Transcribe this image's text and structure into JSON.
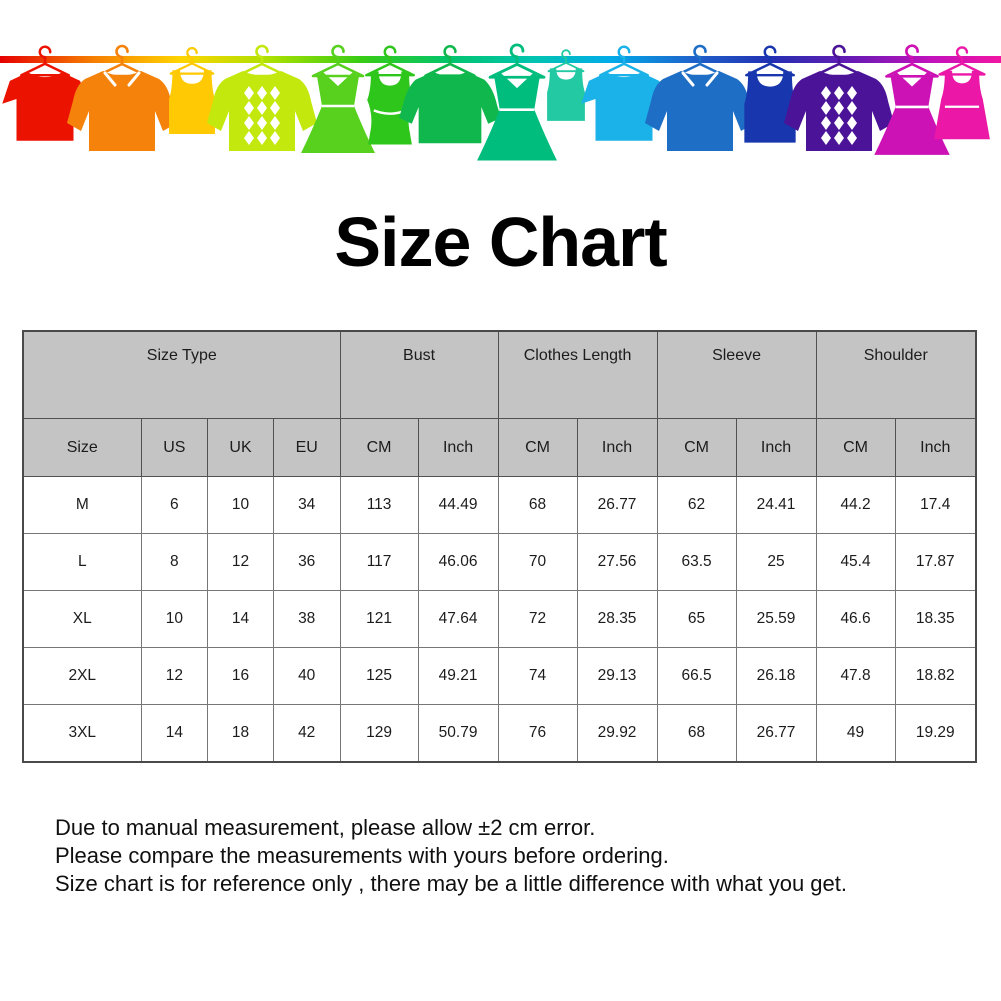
{
  "title": "Size Chart",
  "banner": {
    "rope_gradient": [
      [
        "0",
        "#e60000"
      ],
      [
        "0.09",
        "#f57a00"
      ],
      [
        "0.18",
        "#ffd400"
      ],
      [
        "0.27",
        "#abe000"
      ],
      [
        "0.36",
        "#38cc14"
      ],
      [
        "0.45",
        "#00c46e"
      ],
      [
        "0.53",
        "#00c4ae"
      ],
      [
        "0.61",
        "#00abe8"
      ],
      [
        "0.69",
        "#1e64cc"
      ],
      [
        "0.77",
        "#2330b2"
      ],
      [
        "0.85",
        "#661ab4"
      ],
      [
        "0.93",
        "#c212bc"
      ],
      [
        "1",
        "#f214a2"
      ]
    ],
    "items": [
      {
        "name": "red-tshirt",
        "shape": "tshirt",
        "color": "#ec1200"
      },
      {
        "name": "orange-shirt",
        "shape": "shirt",
        "color": "#f5820a"
      },
      {
        "name": "yellow-tank-top",
        "shape": "tank",
        "color": "#ffc903"
      },
      {
        "name": "lime-argyle-sweater",
        "shape": "sweater",
        "color": "#c3e80e"
      },
      {
        "name": "green-dress",
        "shape": "dress",
        "color": "#57d11d"
      },
      {
        "name": "green-camisole",
        "shape": "camisole",
        "color": "#2fc61b"
      },
      {
        "name": "green-sweatshirt",
        "shape": "longsleeve",
        "color": "#0fb74d"
      },
      {
        "name": "teal-dress",
        "shape": "dress",
        "color": "#00bd7e"
      },
      {
        "name": "teal-tank-top",
        "shape": "tank",
        "color": "#22c9a2"
      },
      {
        "name": "cyan-tshirt",
        "shape": "tshirt",
        "color": "#1ab2e8"
      },
      {
        "name": "blue-shirt",
        "shape": "shirt",
        "color": "#1f6ec6"
      },
      {
        "name": "navy-tank-top",
        "shape": "tank",
        "color": "#1836ad"
      },
      {
        "name": "purple-argyle-sweater",
        "shape": "sweater",
        "color": "#4b1397"
      },
      {
        "name": "magenta-dress",
        "shape": "dress",
        "color": "#cd12b5"
      },
      {
        "name": "pink-tank-dress",
        "shape": "tankdress",
        "color": "#ea17a7"
      }
    ]
  },
  "chart_data": {
    "type": "table",
    "title": "Size Chart",
    "column_groups": [
      {
        "label": "Size Type",
        "span": 4
      },
      {
        "label": "Bust",
        "span": 2
      },
      {
        "label": "Clothes Length",
        "span": 2
      },
      {
        "label": "Sleeve",
        "span": 2
      },
      {
        "label": "Shoulder",
        "span": 2
      }
    ],
    "columns": [
      "Size",
      "US",
      "UK",
      "EU",
      "CM",
      "Inch",
      "CM",
      "Inch",
      "CM",
      "Inch",
      "CM",
      "Inch"
    ],
    "rows": [
      [
        "M",
        "6",
        "10",
        "34",
        "113",
        "44.49",
        "68",
        "26.77",
        "62",
        "24.41",
        "44.2",
        "17.4"
      ],
      [
        "L",
        "8",
        "12",
        "36",
        "117",
        "46.06",
        "70",
        "27.56",
        "63.5",
        "25",
        "45.4",
        "17.87"
      ],
      [
        "XL",
        "10",
        "14",
        "38",
        "121",
        "47.64",
        "72",
        "28.35",
        "65",
        "25.59",
        "46.6",
        "18.35"
      ],
      [
        "2XL",
        "12",
        "16",
        "40",
        "125",
        "49.21",
        "74",
        "29.13",
        "66.5",
        "26.18",
        "47.8",
        "18.82"
      ],
      [
        "3XL",
        "14",
        "18",
        "42",
        "129",
        "50.79",
        "76",
        "29.92",
        "68",
        "26.77",
        "49",
        "19.29"
      ]
    ]
  },
  "notes": [
    "Due to manual measurement, please allow ±2 cm error.",
    "Please compare the measurements with yours before ordering.",
    "Size chart is for reference only , there may be a little difference with what you get."
  ],
  "colors": {
    "header_bg": "#c4c4c4",
    "table_border": "#767676",
    "text": "#1c1c1c"
  }
}
